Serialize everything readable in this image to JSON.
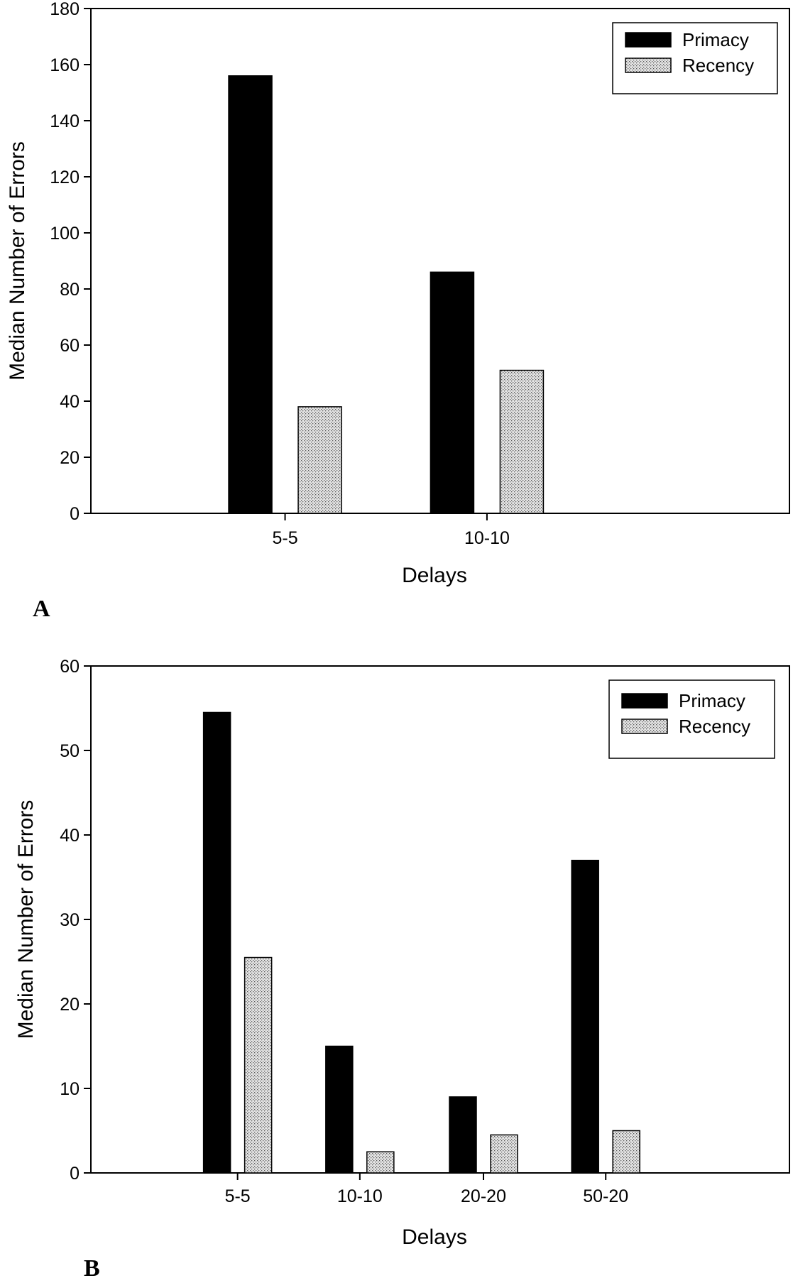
{
  "colors": {
    "primacy": "#000000",
    "recency": "#e6e6e6",
    "recency_dots": "#555555"
  },
  "chart_data": [
    {
      "type": "bar",
      "panel": "A",
      "categories": [
        "5-5",
        "10-10"
      ],
      "series": [
        {
          "name": "Primacy",
          "values": [
            156,
            86
          ]
        },
        {
          "name": "Recency",
          "values": [
            38,
            51
          ]
        }
      ],
      "xlabel": "Delays",
      "ylabel": "Median Number of Errors",
      "ylim": [
        0,
        180
      ],
      "yticks": [
        0,
        20,
        40,
        60,
        80,
        100,
        120,
        140,
        160,
        180
      ],
      "grid": false,
      "legend": "top-right"
    },
    {
      "type": "bar",
      "panel": "B",
      "categories": [
        "5-5",
        "10-10",
        "20-20",
        "50-20"
      ],
      "series": [
        {
          "name": "Primacy",
          "values": [
            54.5,
            15,
            9,
            37
          ]
        },
        {
          "name": "Recency",
          "values": [
            25.5,
            2.5,
            4.5,
            5
          ]
        }
      ],
      "xlabel": "Delays",
      "ylabel": "Median Number of Errors",
      "ylim": [
        0,
        60
      ],
      "yticks": [
        0,
        10,
        20,
        30,
        40,
        50,
        60
      ],
      "grid": false,
      "legend": "top-right"
    }
  ]
}
